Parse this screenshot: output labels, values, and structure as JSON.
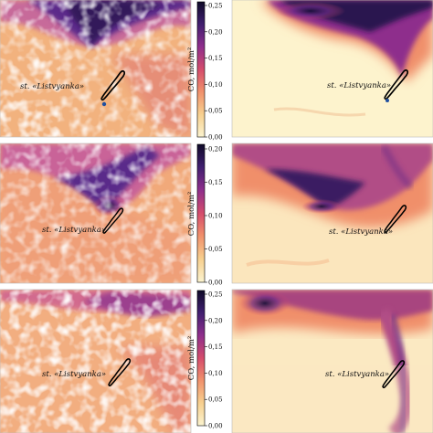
{
  "figure": {
    "station_label": "st. «Listvyanka»",
    "colorbar_unit": "CO, mol/m²",
    "colormap": [
      "#fbf3cf",
      "#f7cf8e",
      "#f08f6b",
      "#d54c6c",
      "#8e2e8c",
      "#3e1e6e",
      "#0f0a28"
    ],
    "rows": [
      {
        "name": "row-1",
        "colorbar_ticks": [
          "0,25",
          "0,20",
          "0,15",
          "0,10",
          "0,05",
          "0,00"
        ],
        "left_panel": "satellite-scene-row-1",
        "right_panel": "model-scene-row-1"
      },
      {
        "name": "row-2",
        "colorbar_ticks": [
          "0,20",
          "0,15",
          "0,10",
          "0,05",
          "0,00"
        ],
        "left_panel": "satellite-scene-row-2",
        "right_panel": "model-scene-row-2"
      },
      {
        "name": "row-3",
        "colorbar_ticks": [
          "0,25",
          "0,20",
          "0,15",
          "0,10",
          "0,05",
          "0,00"
        ],
        "left_panel": "satellite-scene-row-3",
        "right_panel": "model-scene-row-3"
      }
    ]
  }
}
